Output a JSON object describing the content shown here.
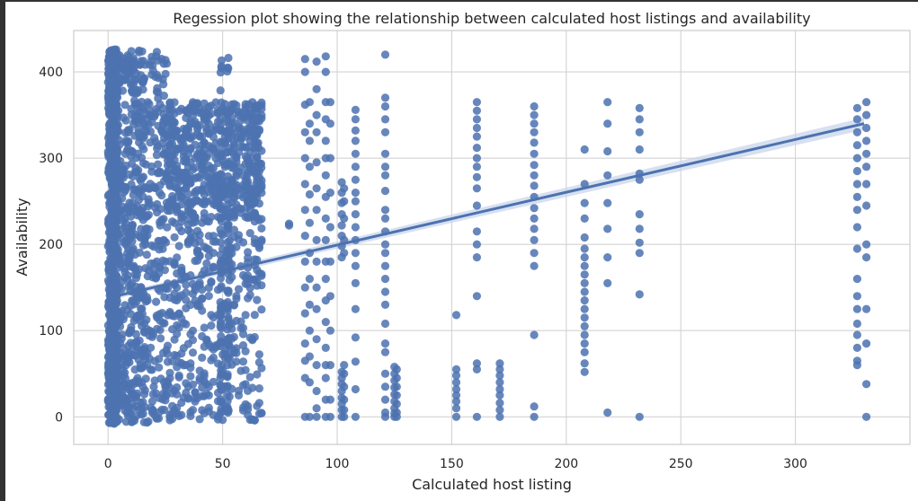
{
  "chart_data": {
    "type": "scatter",
    "title": "Regession plot showing the relationship between calculated host listings and availability",
    "xlabel": "Calculated host listing",
    "ylabel": "Availability",
    "xlim": [
      -15,
      350
    ],
    "ylim": [
      -32,
      448
    ],
    "xticks": [
      0,
      50,
      100,
      150,
      200,
      250,
      300
    ],
    "yticks": [
      0,
      100,
      200,
      300,
      400
    ],
    "grid": true,
    "colors": {
      "points": "#4c72b0",
      "line": "#4c72b0",
      "band": "#c6d3ea",
      "grid": "#d3d3d3",
      "axes_edge": "#cccccc"
    },
    "regression": {
      "x": [
        0,
        330
      ],
      "y": [
        138,
        340
      ],
      "ci_upper_end": 347,
      "ci_lower_end": 333
    },
    "columns": [
      {
        "x": 79,
        "y": [
          222,
          224
        ]
      },
      {
        "x": 86,
        "y": [
          362,
          330,
          300,
          270,
          240,
          210,
          180,
          150,
          120,
          85,
          65,
          45,
          0,
          415,
          400
        ]
      },
      {
        "x": 88,
        "y": [
          365,
          340,
          320,
          290,
          258,
          225,
          190,
          160,
          130,
          100,
          70,
          40,
          0
        ]
      },
      {
        "x": 91,
        "y": [
          380,
          350,
          330,
          295,
          265,
          240,
          205,
          180,
          150,
          125,
          90,
          60,
          30,
          10,
          0,
          412
        ]
      },
      {
        "x": 95,
        "y": [
          418,
          400,
          365,
          345,
          320,
          300,
          280,
          255,
          230,
          205,
          180,
          160,
          135,
          110,
          80,
          60,
          45,
          20,
          0
        ]
      },
      {
        "x": 97,
        "y": [
          365,
          340,
          300,
          260,
          220,
          180,
          140,
          100,
          60,
          20,
          0
        ]
      },
      {
        "x": 102,
        "y": [
          272,
          260,
          248,
          235,
          222,
          210,
          198,
          185,
          52,
          45,
          38,
          30,
          22,
          15,
          8,
          0
        ]
      },
      {
        "x": 103,
        "y": [
          265,
          250,
          230,
          205,
          190,
          60,
          50,
          35,
          20,
          8,
          0
        ]
      },
      {
        "x": 108,
        "y": [
          356,
          345,
          332,
          320,
          305,
          290,
          275,
          260,
          250,
          235,
          220,
          205,
          190,
          175,
          155,
          125,
          92,
          64,
          32,
          0
        ]
      },
      {
        "x": 121,
        "y": [
          420,
          370,
          360,
          345,
          330,
          305,
          290,
          280,
          262,
          240,
          230,
          215,
          200,
          190,
          175,
          160,
          145,
          130,
          108,
          85,
          75,
          50,
          35,
          20,
          5,
          0
        ]
      },
      {
        "x": 125,
        "y": [
          58,
          50,
          42,
          34,
          26,
          18,
          10,
          4,
          0
        ]
      },
      {
        "x": 126,
        "y": [
          55,
          45,
          35,
          25,
          15,
          5,
          0
        ]
      },
      {
        "x": 152,
        "y": [
          118,
          55,
          48,
          40,
          32,
          25,
          18,
          10,
          0
        ]
      },
      {
        "x": 161,
        "y": [
          365,
          355,
          345,
          335,
          325,
          312,
          300,
          290,
          278,
          265,
          245,
          215,
          200,
          185,
          140,
          62,
          55,
          0
        ]
      },
      {
        "x": 171,
        "y": [
          62,
          55,
          48,
          40,
          32,
          25,
          16,
          8,
          0
        ]
      },
      {
        "x": 186,
        "y": [
          360,
          350,
          340,
          330,
          318,
          305,
          292,
          280,
          268,
          255,
          242,
          230,
          218,
          205,
          190,
          175,
          95,
          12,
          0
        ]
      },
      {
        "x": 208,
        "y": [
          310,
          270,
          248,
          230,
          208,
          195,
          185,
          175,
          165,
          155,
          145,
          135,
          125,
          115,
          105,
          95,
          85,
          75,
          62,
          52
        ]
      },
      {
        "x": 218,
        "y": [
          365,
          340,
          308,
          280,
          248,
          218,
          185,
          155,
          5
        ]
      },
      {
        "x": 232,
        "y": [
          358,
          345,
          330,
          310,
          282,
          275,
          235,
          218,
          202,
          190,
          142,
          0
        ]
      },
      {
        "x": 327,
        "y": [
          358,
          345,
          330,
          315,
          300,
          285,
          270,
          255,
          240,
          220,
          195,
          160,
          140,
          125,
          108,
          95,
          80,
          65,
          60
        ]
      },
      {
        "x": 331,
        "y": [
          365,
          350,
          335,
          320,
          305,
          290,
          270,
          245,
          200,
          185,
          125,
          85,
          38,
          0
        ]
      }
    ]
  }
}
